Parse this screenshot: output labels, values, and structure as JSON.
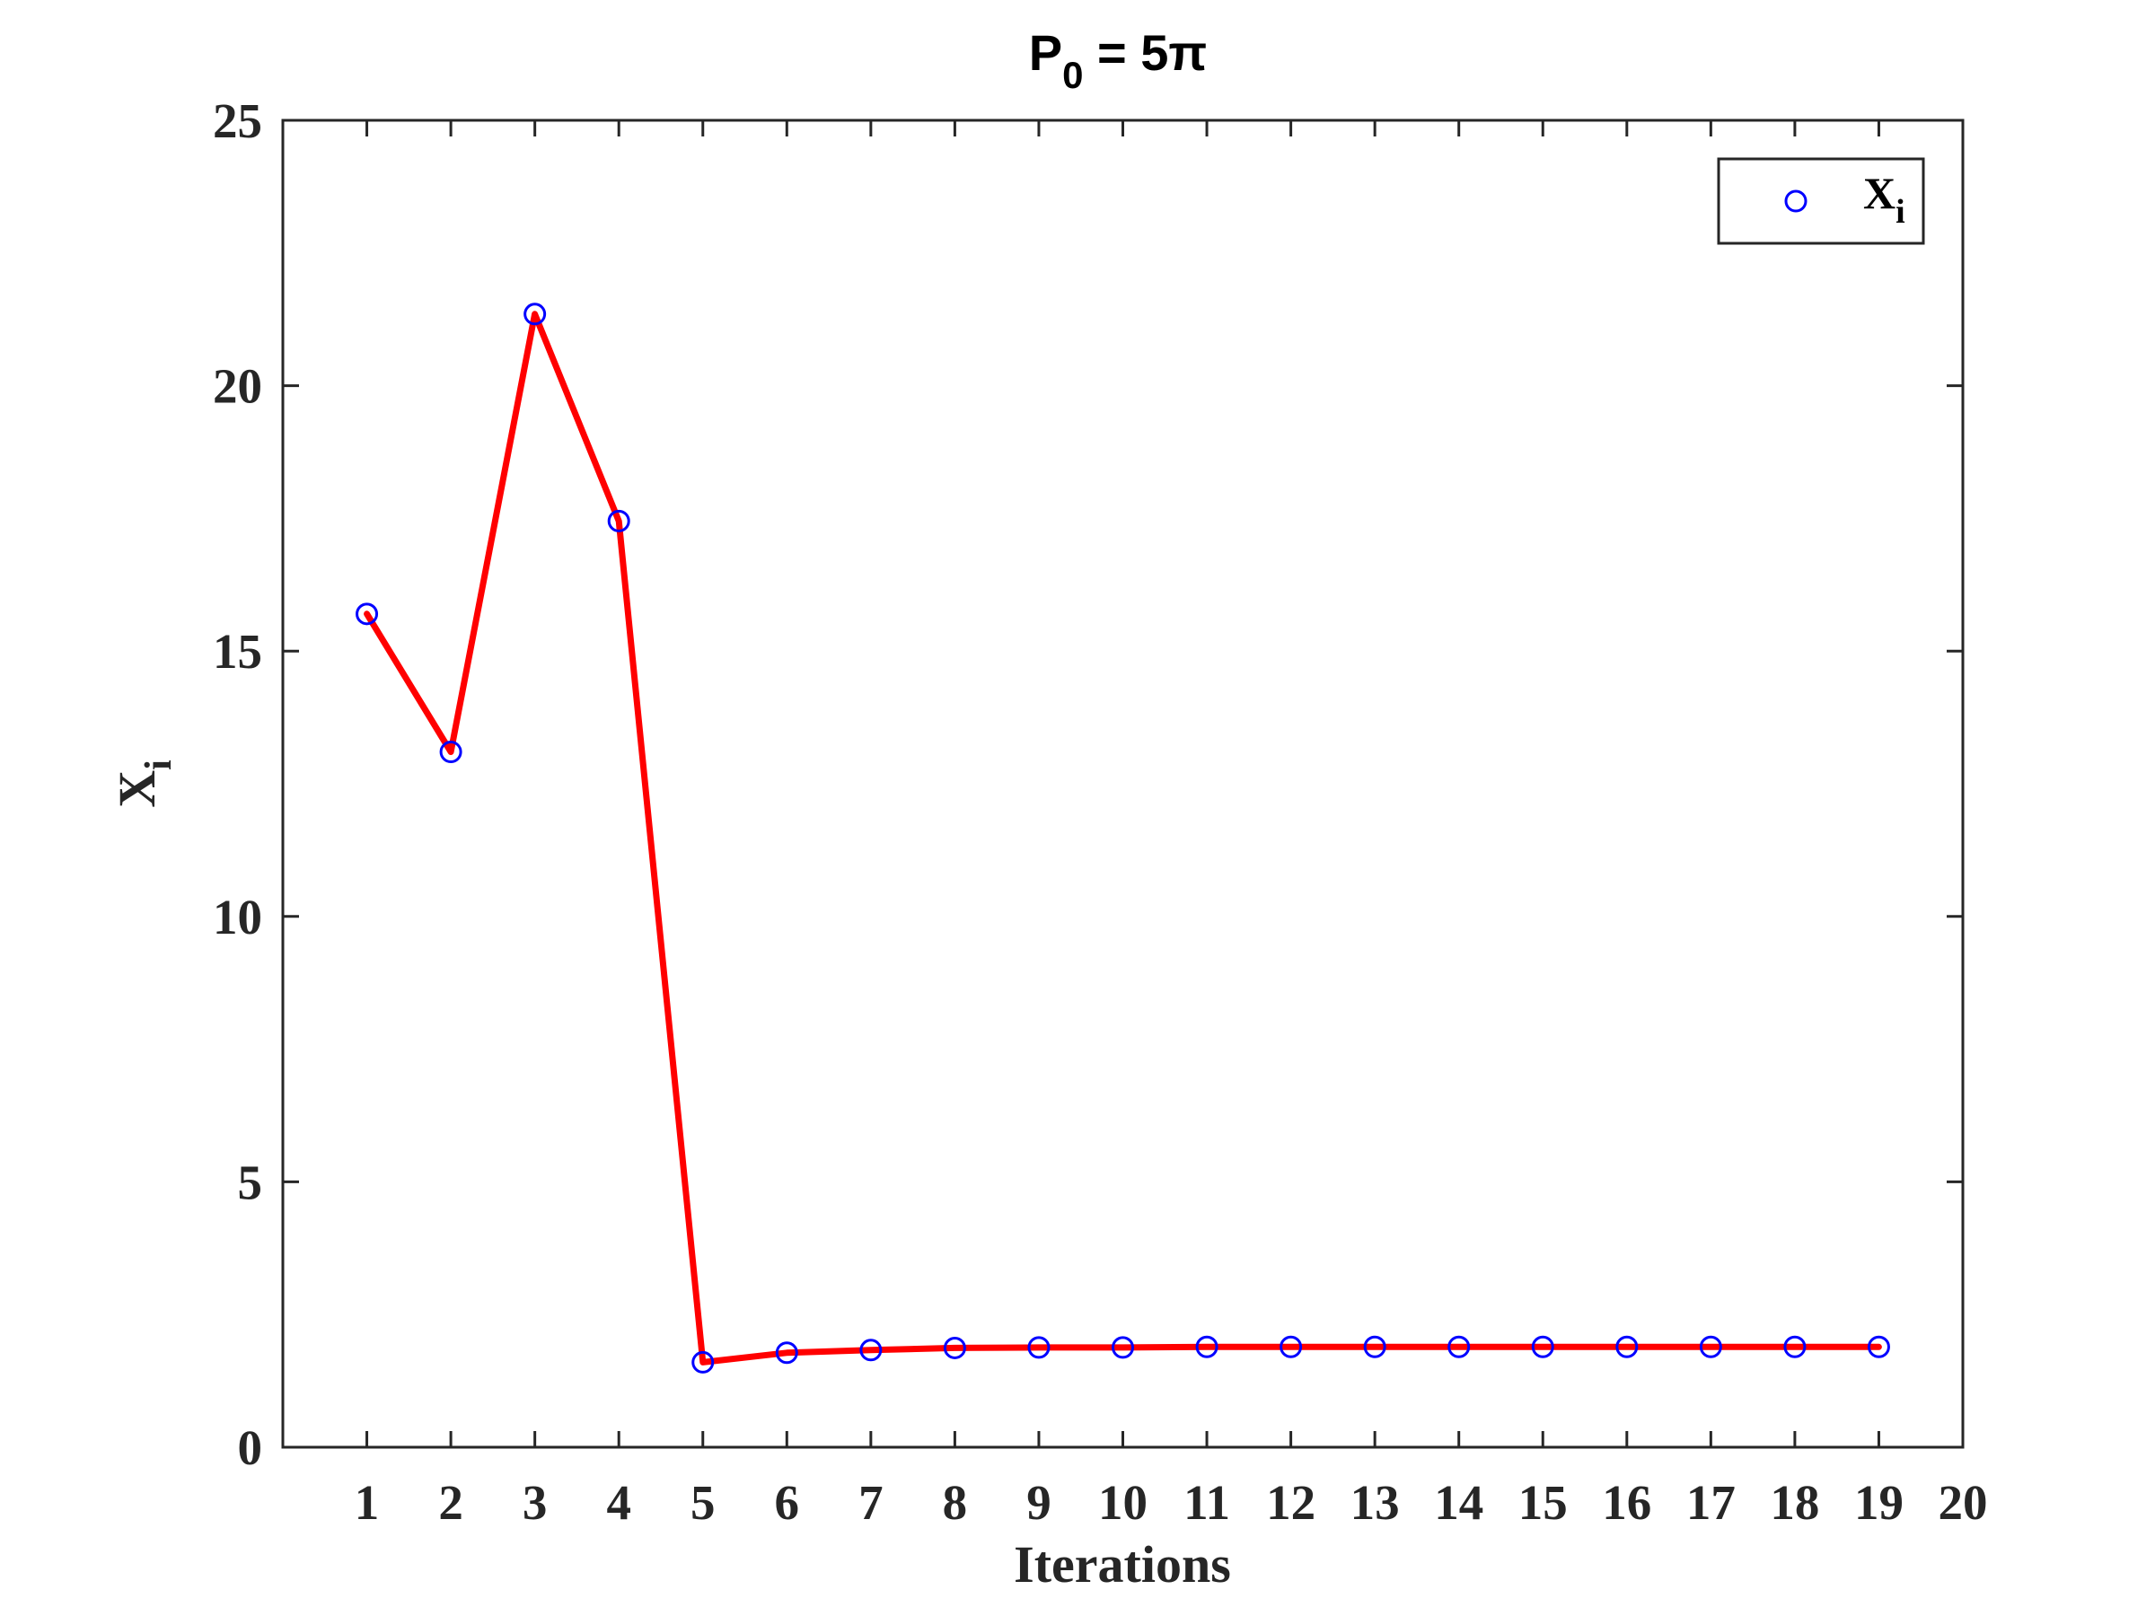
{
  "chart_data": {
    "type": "line",
    "title": "P",
    "title_subscript": "0",
    "title_suffix": " = 5π",
    "xlabel": "Iterations",
    "ylabel": "X",
    "ylabel_subscript": "i",
    "xlim": [
      0,
      20
    ],
    "ylim": [
      0,
      25
    ],
    "xticks": [
      "1",
      "2",
      "3",
      "4",
      "5",
      "6",
      "7",
      "8",
      "9",
      "10",
      "11",
      "12",
      "13",
      "14",
      "15",
      "16",
      "17",
      "18",
      "19",
      "20"
    ],
    "yticks": [
      "0",
      "5",
      "10",
      "15",
      "20",
      "25"
    ],
    "grid": false,
    "legend_position": "top-right",
    "series": [
      {
        "name": "X",
        "name_subscript": "i",
        "line_color": "#ff0000",
        "marker_color": "#0000ff",
        "marker": "circle",
        "x": [
          1,
          2,
          3,
          4,
          5,
          6,
          7,
          8,
          9,
          10,
          11,
          12,
          13,
          14,
          15,
          16,
          17,
          18,
          19
        ],
        "y": [
          15.7,
          13.1,
          21.35,
          17.45,
          1.6,
          1.78,
          1.83,
          1.87,
          1.88,
          1.88,
          1.89,
          1.89,
          1.89,
          1.89,
          1.89,
          1.89,
          1.89,
          1.89,
          1.89
        ]
      }
    ]
  }
}
